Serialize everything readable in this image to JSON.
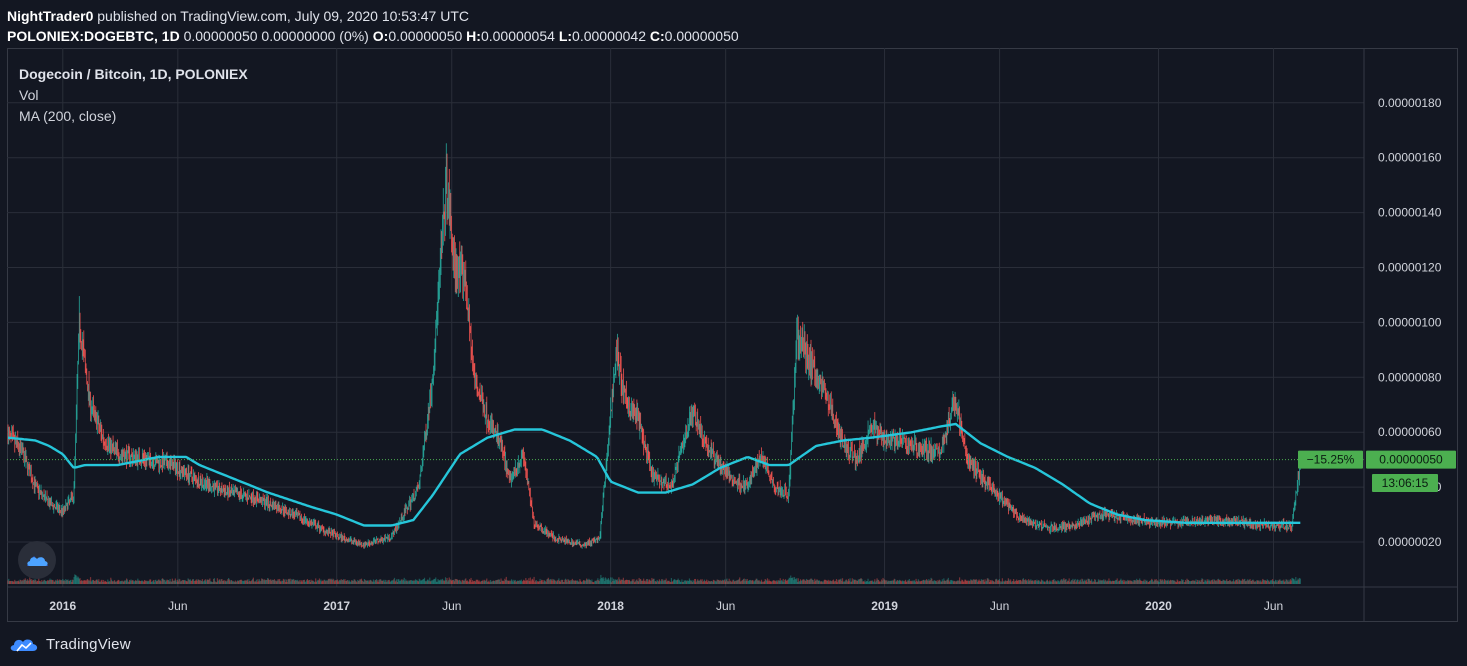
{
  "header": {
    "publisher": "NightTrader0",
    "published_text": "published on TradingView.com, July 09, 2020 10:53:47 UTC",
    "symbol": "POLONIEX:DOGEBTC, 1D",
    "quote": "0.00000050 0.00000000 (0%)",
    "o_label": "O:",
    "o_value": "0.00000050",
    "h_label": "H:",
    "h_value": "0.00000054",
    "l_label": "L:",
    "l_value": "0.00000042",
    "c_label": "C:",
    "c_value": "0.00000050"
  },
  "legend": {
    "title": "Dogecoin / Bitcoin, 1D, POLONIEX",
    "vol": "Vol",
    "ma": "MA (200, close)"
  },
  "footer": {
    "brand": "TradingView"
  },
  "colors": {
    "background": "#131722",
    "grid": "#2a2e39",
    "up": "#26a69a",
    "down": "#ef5350",
    "ma": "#26c6da",
    "last_price": "#4caf50",
    "last_price_text": "#0b1c12"
  },
  "chart_data": {
    "type": "candlestick",
    "y_axis_ticks": [
      "0.00000020",
      "0.00000040",
      "0.00000060",
      "0.00000080",
      "0.00000100",
      "0.00000120",
      "0.00000140",
      "0.00000160",
      "0.00000180"
    ],
    "y_axis_values": [
      0.2,
      0.4,
      0.6,
      0.8,
      1.0,
      1.2,
      1.4,
      1.6,
      1.8
    ],
    "y_unit_note": "values in units of 1e-6 BTC",
    "ylim": [
      0.1,
      2.0
    ],
    "x_axis_ticks": [
      "2016",
      "Jun",
      "2017",
      "Jun",
      "2018",
      "Jun",
      "2019",
      "Jun",
      "2020",
      "Jun"
    ],
    "x_tick_values": [
      2016.0,
      2016.42,
      2017.0,
      2017.42,
      2018.0,
      2018.42,
      2019.0,
      2019.42,
      2020.0,
      2020.42
    ],
    "xlim": [
      2015.8,
      2020.67
    ],
    "last_price": "0.00000050",
    "change_percent": "−15.25%",
    "countdown": "13:06:15",
    "close_points": [
      [
        2015.8,
        0.59
      ],
      [
        2015.85,
        0.53
      ],
      [
        2015.9,
        0.4
      ],
      [
        2015.95,
        0.34
      ],
      [
        2016.0,
        0.31
      ],
      [
        2016.04,
        0.37
      ],
      [
        2016.06,
        1.0
      ],
      [
        2016.1,
        0.7
      ],
      [
        2016.15,
        0.57
      ],
      [
        2016.2,
        0.52
      ],
      [
        2016.3,
        0.5
      ],
      [
        2016.4,
        0.48
      ],
      [
        2016.5,
        0.42
      ],
      [
        2016.6,
        0.38
      ],
      [
        2016.7,
        0.36
      ],
      [
        2016.8,
        0.32
      ],
      [
        2016.9,
        0.27
      ],
      [
        2017.0,
        0.22
      ],
      [
        2017.1,
        0.19
      ],
      [
        2017.2,
        0.22
      ],
      [
        2017.3,
        0.4
      ],
      [
        2017.35,
        0.8
      ],
      [
        2017.4,
        1.5
      ],
      [
        2017.43,
        1.2
      ],
      [
        2017.47,
        1.15
      ],
      [
        2017.5,
        0.8
      ],
      [
        2017.55,
        0.65
      ],
      [
        2017.6,
        0.55
      ],
      [
        2017.63,
        0.42
      ],
      [
        2017.68,
        0.52
      ],
      [
        2017.72,
        0.27
      ],
      [
        2017.8,
        0.21
      ],
      [
        2017.9,
        0.19
      ],
      [
        2017.96,
        0.21
      ],
      [
        2017.99,
        0.55
      ],
      [
        2018.02,
        0.9
      ],
      [
        2018.05,
        0.72
      ],
      [
        2018.1,
        0.65
      ],
      [
        2018.15,
        0.44
      ],
      [
        2018.22,
        0.4
      ],
      [
        2018.3,
        0.68
      ],
      [
        2018.35,
        0.55
      ],
      [
        2018.4,
        0.48
      ],
      [
        2018.45,
        0.42
      ],
      [
        2018.5,
        0.4
      ],
      [
        2018.55,
        0.52
      ],
      [
        2018.6,
        0.4
      ],
      [
        2018.65,
        0.37
      ],
      [
        2018.68,
        0.95
      ],
      [
        2018.72,
        0.87
      ],
      [
        2018.78,
        0.75
      ],
      [
        2018.85,
        0.55
      ],
      [
        2018.9,
        0.5
      ],
      [
        2018.95,
        0.62
      ],
      [
        2019.0,
        0.58
      ],
      [
        2019.1,
        0.55
      ],
      [
        2019.2,
        0.52
      ],
      [
        2019.26,
        0.72
      ],
      [
        2019.3,
        0.5
      ],
      [
        2019.4,
        0.38
      ],
      [
        2019.5,
        0.28
      ],
      [
        2019.6,
        0.25
      ],
      [
        2019.7,
        0.26
      ],
      [
        2019.8,
        0.3
      ],
      [
        2019.9,
        0.28
      ],
      [
        2020.0,
        0.27
      ],
      [
        2020.1,
        0.27
      ],
      [
        2020.2,
        0.28
      ],
      [
        2020.3,
        0.27
      ],
      [
        2020.4,
        0.26
      ],
      [
        2020.45,
        0.26
      ],
      [
        2020.485,
        0.25
      ],
      [
        2020.52,
        0.5
      ]
    ],
    "ma_points": [
      [
        2015.8,
        0.58
      ],
      [
        2015.9,
        0.57
      ],
      [
        2015.95,
        0.55
      ],
      [
        2016.0,
        0.52
      ],
      [
        2016.04,
        0.47
      ],
      [
        2016.08,
        0.48
      ],
      [
        2016.2,
        0.48
      ],
      [
        2016.35,
        0.51
      ],
      [
        2016.45,
        0.51
      ],
      [
        2016.5,
        0.48
      ],
      [
        2016.6,
        0.44
      ],
      [
        2016.75,
        0.38
      ],
      [
        2016.9,
        0.33
      ],
      [
        2017.0,
        0.3
      ],
      [
        2017.1,
        0.26
      ],
      [
        2017.2,
        0.26
      ],
      [
        2017.28,
        0.28
      ],
      [
        2017.35,
        0.37
      ],
      [
        2017.45,
        0.52
      ],
      [
        2017.55,
        0.58
      ],
      [
        2017.65,
        0.61
      ],
      [
        2017.75,
        0.61
      ],
      [
        2017.85,
        0.57
      ],
      [
        2017.95,
        0.51
      ],
      [
        2018.0,
        0.42
      ],
      [
        2018.1,
        0.38
      ],
      [
        2018.2,
        0.38
      ],
      [
        2018.3,
        0.41
      ],
      [
        2018.4,
        0.47
      ],
      [
        2018.5,
        0.51
      ],
      [
        2018.58,
        0.48
      ],
      [
        2018.65,
        0.48
      ],
      [
        2018.75,
        0.55
      ],
      [
        2018.85,
        0.57
      ],
      [
        2018.95,
        0.58
      ],
      [
        2019.1,
        0.6
      ],
      [
        2019.2,
        0.62
      ],
      [
        2019.26,
        0.63
      ],
      [
        2019.35,
        0.56
      ],
      [
        2019.45,
        0.51
      ],
      [
        2019.55,
        0.47
      ],
      [
        2019.65,
        0.41
      ],
      [
        2019.75,
        0.34
      ],
      [
        2019.85,
        0.3
      ],
      [
        2019.95,
        0.28
      ],
      [
        2020.1,
        0.27
      ],
      [
        2020.3,
        0.27
      ],
      [
        2020.52,
        0.27
      ]
    ]
  }
}
